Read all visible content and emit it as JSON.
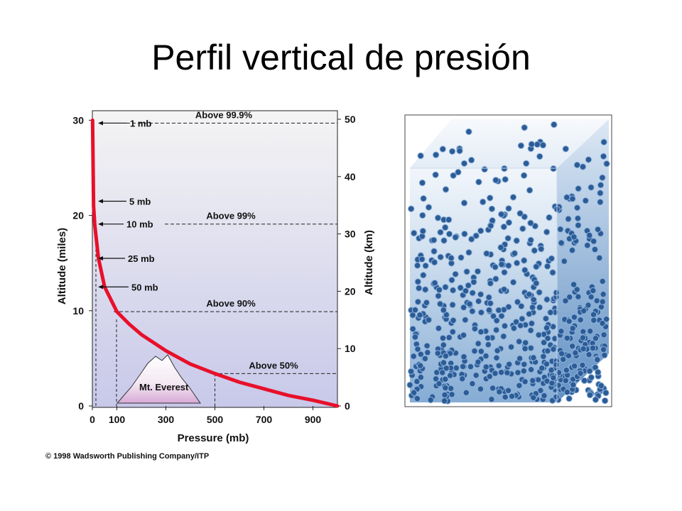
{
  "slide": {
    "title": "Perfil vertical de presión"
  },
  "chart_data": {
    "type": "line",
    "title": "",
    "xlabel": "Pressure (mb)",
    "ylabel": "Altitude (miles)",
    "y2label": "Altitude (km)",
    "xlim": [
      0,
      1000
    ],
    "ylim": [
      0,
      31
    ],
    "y2lim": [
      0,
      50
    ],
    "xticks": [
      "0",
      "100",
      "300",
      "500",
      "700",
      "900"
    ],
    "xtick_values": [
      0,
      100,
      300,
      500,
      700,
      900
    ],
    "yticks": [
      "0",
      "10",
      "20",
      "30"
    ],
    "ytick_values": [
      0,
      10,
      20,
      30
    ],
    "y2ticks": [
      "0",
      "10",
      "20",
      "30",
      "40",
      "50"
    ],
    "y2tick_values": [
      0,
      10,
      20,
      30,
      40,
      50
    ],
    "series": [
      {
        "color": "#e8102a",
        "x": [
          1,
          5,
          10,
          25,
          50,
          100,
          150,
          200,
          300,
          400,
          500,
          600,
          700,
          800,
          900,
          1000
        ],
        "y": [
          30,
          21,
          19,
          15.5,
          12.5,
          9.9,
          8.6,
          7.5,
          5.8,
          4.4,
          3.4,
          2.5,
          1.8,
          1.1,
          0.6,
          0
        ]
      }
    ],
    "pressure_labels": [
      {
        "text": "1 mb",
        "x": 1,
        "y": 29.7
      },
      {
        "text": "5 mb",
        "x": 5,
        "y": 21.5
      },
      {
        "text": "10 mb",
        "x": 10,
        "y": 19.1
      },
      {
        "text": "25 mb",
        "x": 25,
        "y": 15.5
      },
      {
        "text": "50 mb",
        "x": 50,
        "y": 12.5
      }
    ],
    "levels": [
      {
        "text": "Above 99.9%",
        "y": 29.7
      },
      {
        "text": "Above 99%",
        "y": 19.1
      },
      {
        "text": "Above 90%",
        "y": 9.9
      },
      {
        "text": "Above 50%",
        "y": 3.4
      }
    ],
    "mountain_label": "Mt. Everest",
    "grid": false,
    "legend": "none"
  },
  "footer": {
    "copyright": "© 1998 Wadsworth Publishing Company/ITP"
  },
  "colors": {
    "curve": "#e8102a",
    "sky_top": "#f4f4f4",
    "sky_bottom": "#c8c8ea",
    "box_dark": "#2d5d95",
    "box_light": "#e2edf7"
  }
}
